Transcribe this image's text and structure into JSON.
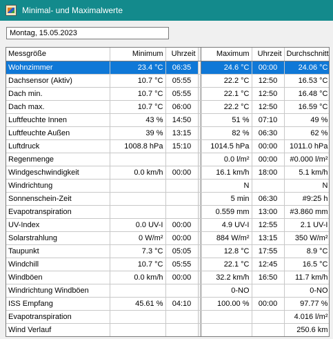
{
  "window": {
    "title": "Minimal- und Maximalwerte"
  },
  "date_field": {
    "value": "Montag, 15.05.2023"
  },
  "table": {
    "headers": [
      "Messgröße",
      "Minimum",
      "Uhrzeit",
      "Maximum",
      "Uhrzeit",
      "Durchschnitt"
    ],
    "rows": [
      [
        "Wohnzimmer",
        "23.4 °C",
        "06:35",
        "24.6 °C",
        "00:00",
        "24.06 °C"
      ],
      [
        "Dachsensor (Aktiv)",
        "10.7 °C",
        "05:55",
        "22.2 °C",
        "12:50",
        "16.53 °C"
      ],
      [
        "Dach min.",
        "10.7 °C",
        "05:55",
        "22.1 °C",
        "12:50",
        "16.48 °C"
      ],
      [
        "Dach max.",
        "10.7 °C",
        "06:00",
        "22.2 °C",
        "12:50",
        "16.59 °C"
      ],
      [
        "Luftfeuchte Innen",
        "43 %",
        "14:50",
        "51 %",
        "07:10",
        "49 %"
      ],
      [
        "Luftfeuchte Außen",
        "39 %",
        "13:15",
        "82 %",
        "06:30",
        "62 %"
      ],
      [
        "Luftdruck",
        "1008.8 hPa",
        "15:10",
        "1014.5 hPa",
        "00:00",
        "1011.0 hPa"
      ],
      [
        "Regenmenge",
        "",
        "",
        "0.0 l/m²",
        "00:00",
        "#0.000 l/m²"
      ],
      [
        "Windgeschwindigkeit",
        "0.0 km/h",
        "00:00",
        "16.1 km/h",
        "18:00",
        "5.1 km/h"
      ],
      [
        "Windrichtung",
        "",
        "",
        "N",
        "",
        "N"
      ],
      [
        "Sonnenschein-Zeit",
        "",
        "",
        "5 min",
        "06:30",
        "#9:25 h"
      ],
      [
        "Evapotranspiration",
        "",
        "",
        "0.559 mm",
        "13:00",
        "#3.860 mm"
      ],
      [
        "UV-Index",
        "0.0 UV-I",
        "00:00",
        "4.9 UV-I",
        "12:55",
        "2.1 UV-I"
      ],
      [
        "Solarstrahlung",
        "0 W/m²",
        "00:00",
        "884 W/m²",
        "13:15",
        "350 W/m²"
      ],
      [
        "Taupunkt",
        "7.3 °C",
        "05:05",
        "12.8 °C",
        "17:55",
        "8.9 °C"
      ],
      [
        "Windchill",
        "10.7 °C",
        "05:55",
        "22.1 °C",
        "12:45",
        "16.5 °C"
      ],
      [
        "Windböen",
        "0.0 km/h",
        "00:00",
        "32.2 km/h",
        "16:50",
        "11.7 km/h"
      ],
      [
        "Windrichtung Windböen",
        "",
        "",
        "0-NO",
        "",
        "0-NO"
      ],
      [
        "ISS Empfang",
        "45.61 %",
        "04:10",
        "100.00 %",
        "00:00",
        "97.77 %"
      ],
      [
        "Evapotranspiration",
        "",
        "",
        "",
        "",
        "4.016 l/m²"
      ],
      [
        "Wind Verlauf",
        "",
        "",
        "",
        "",
        "250.6 km"
      ]
    ]
  },
  "colors": {
    "titlebar": "#138a8c",
    "selection": "#0f78d7"
  }
}
